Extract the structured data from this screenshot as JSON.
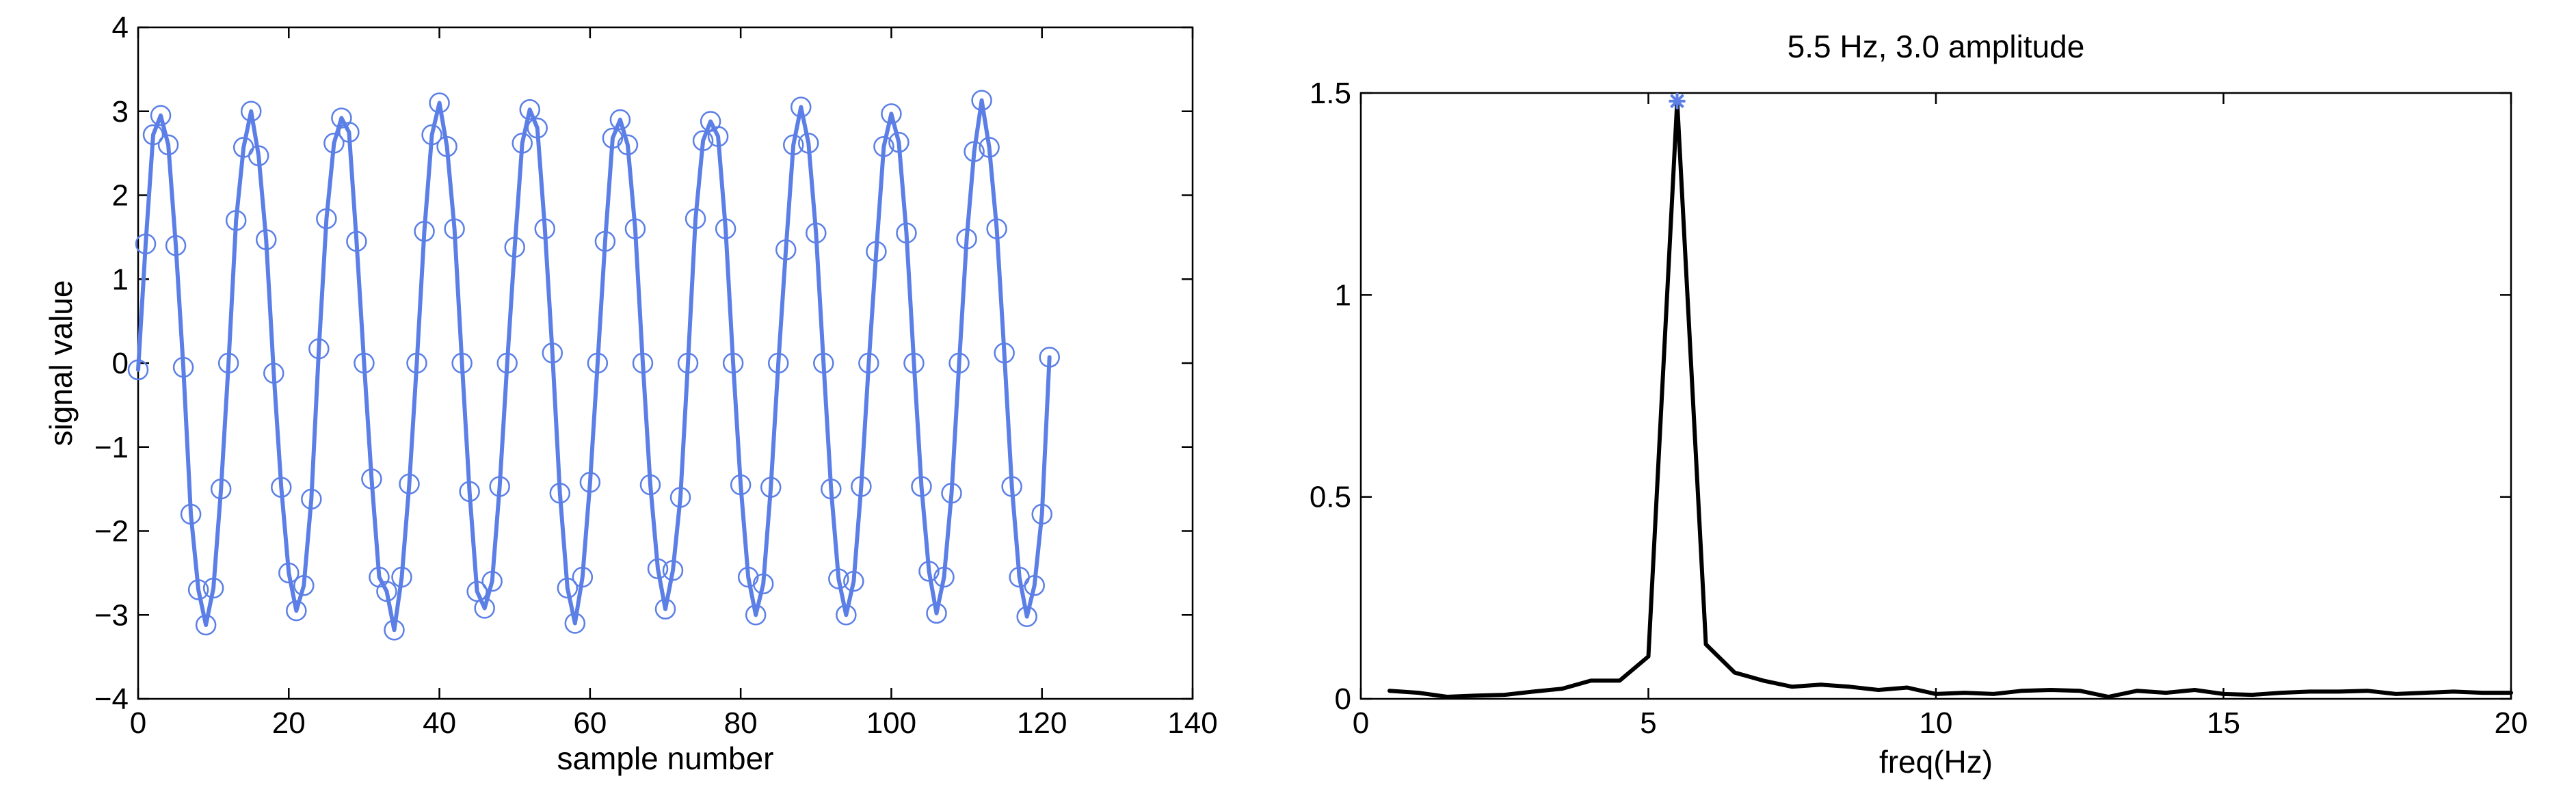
{
  "chart_data": [
    {
      "type": "line",
      "title": "",
      "xlabel": "sample number",
      "ylabel": "signal value",
      "xlim": [
        0,
        140
      ],
      "ylim": [
        -4,
        4
      ],
      "xticks": [
        0,
        20,
        40,
        60,
        80,
        100,
        120,
        140
      ],
      "yticks": [
        -4,
        -3,
        -2,
        -1,
        0,
        1,
        2,
        3,
        4
      ],
      "xtick_labels": [
        "0",
        "20",
        "40",
        "60",
        "80",
        "100",
        "120",
        "140"
      ],
      "ytick_labels": [
        "−4",
        "−3",
        "−2",
        "−1",
        "0",
        "1",
        "2",
        "3",
        "4"
      ],
      "grid": false,
      "series": [
        {
          "style": "line with circle markers",
          "color": "#5b7fe6",
          "x": [
            0,
            1,
            2,
            3,
            4,
            5,
            6,
            7,
            8,
            9,
            10,
            11,
            12,
            13,
            14,
            15,
            16,
            17,
            18,
            19,
            20,
            21,
            22,
            23,
            24,
            25,
            26,
            27,
            28,
            29,
            30,
            31,
            32,
            33,
            34,
            35,
            36,
            37,
            38,
            39,
            40,
            41,
            42,
            43,
            44,
            45,
            46,
            47,
            48,
            49,
            50,
            51,
            52,
            53,
            54,
            55,
            56,
            57,
            58,
            59,
            60,
            61,
            62,
            63,
            64,
            65,
            66,
            67,
            68,
            69,
            70,
            71,
            72,
            73,
            74,
            75,
            76,
            77,
            78,
            79,
            80,
            81,
            82,
            83,
            84,
            85,
            86,
            87,
            88,
            89,
            90,
            91,
            92,
            93,
            94,
            95,
            96,
            97,
            98,
            99,
            100,
            101,
            102,
            103,
            104,
            105,
            106,
            107,
            108,
            109,
            110,
            111,
            112,
            113,
            114,
            115,
            116,
            117,
            118,
            119,
            120,
            121
          ],
          "y": [
            -0.08,
            1.42,
            2.72,
            2.95,
            2.6,
            1.4,
            -0.05,
            -1.8,
            -2.7,
            -3.12,
            -2.68,
            -1.5,
            0.0,
            1.7,
            2.57,
            3.0,
            2.47,
            1.47,
            -0.12,
            -1.48,
            -2.5,
            -2.95,
            -2.65,
            -1.62,
            0.17,
            1.72,
            2.62,
            2.92,
            2.75,
            1.45,
            0.0,
            -1.38,
            -2.55,
            -2.72,
            -3.18,
            -2.55,
            -1.44,
            0.0,
            1.57,
            2.72,
            3.1,
            2.58,
            1.6,
            0.0,
            -1.53,
            -2.72,
            -2.92,
            -2.6,
            -1.47,
            0.0,
            1.38,
            2.62,
            3.02,
            2.8,
            1.6,
            0.12,
            -1.55,
            -2.68,
            -3.1,
            -2.55,
            -1.42,
            0.0,
            1.45,
            2.68,
            2.9,
            2.6,
            1.6,
            0.0,
            -1.45,
            -2.45,
            -2.93,
            -2.47,
            -1.6,
            0.0,
            1.72,
            2.65,
            2.88,
            2.7,
            1.6,
            0.0,
            -1.45,
            -2.55,
            -3.0,
            -2.63,
            -1.48,
            0.0,
            1.35,
            2.6,
            3.05,
            2.62,
            1.55,
            0.0,
            -1.5,
            -2.57,
            -3.0,
            -2.6,
            -1.47,
            0.0,
            1.33,
            2.58,
            2.97,
            2.63,
            1.55,
            0.0,
            -1.47,
            -2.48,
            -2.98,
            -2.55,
            -1.55,
            0.0,
            1.48,
            2.52,
            3.13,
            2.57,
            1.6,
            0.12,
            -1.47,
            -2.55,
            -3.02,
            -2.65,
            -1.8,
            0.07
          ]
        }
      ]
    },
    {
      "type": "line",
      "title": "5.5 Hz, 3.0 amplitude",
      "xlabel": "freq(Hz)",
      "ylabel": "",
      "xlim": [
        0,
        20
      ],
      "ylim": [
        0,
        1.5
      ],
      "xticks": [
        0,
        5,
        10,
        15,
        20
      ],
      "yticks": [
        0,
        0.5,
        1,
        1.5
      ],
      "xtick_labels": [
        "0",
        "5",
        "10",
        "15",
        "20"
      ],
      "ytick_labels": [
        "0",
        "0.5",
        "1",
        "1.5"
      ],
      "grid": false,
      "series": [
        {
          "style": "line",
          "color": "#000000",
          "x": [
            0.5,
            1,
            1.5,
            2,
            2.5,
            3,
            3.5,
            4,
            4.5,
            5,
            5.5,
            6,
            6.5,
            7,
            7.5,
            8,
            8.5,
            9,
            9.5,
            10,
            10.5,
            11,
            11.5,
            12,
            12.5,
            13,
            13.5,
            14,
            14.5,
            15,
            15.5,
            16,
            16.5,
            17,
            17.5,
            18,
            18.5,
            19,
            19.5,
            20
          ],
          "y": [
            0.02,
            0.015,
            0.005,
            0.008,
            0.01,
            0.018,
            0.025,
            0.045,
            0.045,
            0.105,
            1.48,
            0.135,
            0.065,
            0.045,
            0.03,
            0.035,
            0.03,
            0.022,
            0.028,
            0.012,
            0.015,
            0.012,
            0.02,
            0.022,
            0.02,
            0.005,
            0.02,
            0.015,
            0.022,
            0.012,
            0.01,
            0.015,
            0.018,
            0.018,
            0.02,
            0.012,
            0.015,
            0.018,
            0.015,
            0.015
          ]
        },
        {
          "style": "peak marker",
          "color": "#5b7fe6",
          "x": [
            5.5
          ],
          "y": [
            1.48
          ]
        }
      ]
    }
  ]
}
